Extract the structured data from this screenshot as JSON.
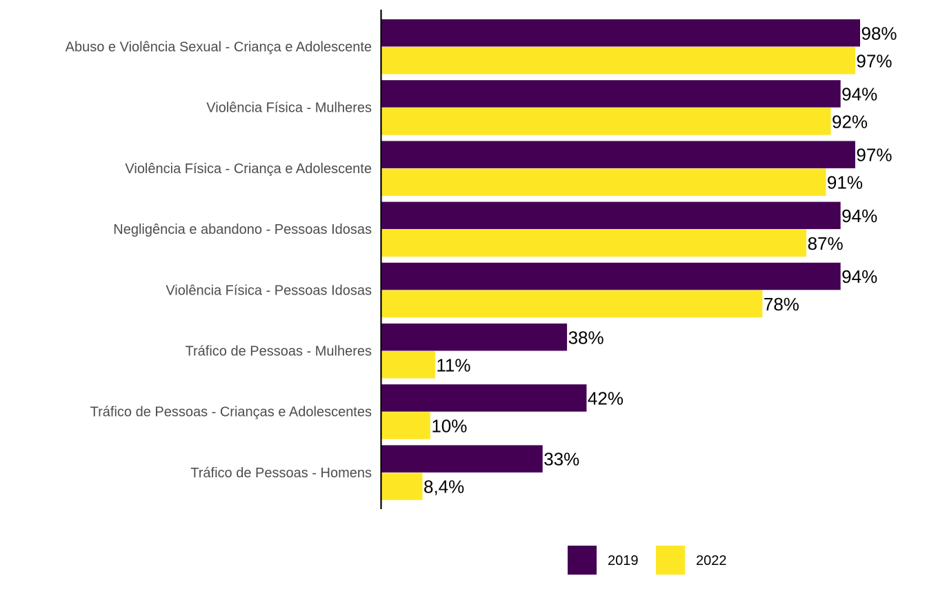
{
  "chart_data": {
    "type": "bar",
    "orientation": "horizontal",
    "categories": [
      "Abuso e Violência Sexual - Criança e Adolescente",
      "Violência Física - Mulheres",
      "Violência Física - Criança e Adolescente",
      "Negligência e abandono - Pessoas Idosas",
      "Violência Física - Pessoas Idosas",
      "Tráfico de Pessoas - Mulheres",
      "Tráfico de Pessoas - Crianças e Adolescentes",
      "Tráfico de Pessoas - Homens"
    ],
    "series": [
      {
        "name": "2019",
        "color": "#440154",
        "values": [
          98,
          94,
          97,
          94,
          94,
          38,
          42,
          33
        ],
        "labels": [
          "98%",
          "94%",
          "97%",
          "94%",
          "94%",
          "38%",
          "42%",
          "33%"
        ]
      },
      {
        "name": "2022",
        "color": "#fde725",
        "values": [
          97,
          92,
          91,
          87,
          78,
          11,
          10,
          8.4
        ],
        "labels": [
          "97%",
          "92%",
          "91%",
          "87%",
          "78%",
          "11%",
          "10%",
          "8,4%"
        ]
      }
    ],
    "xlim": [
      0,
      100
    ],
    "grid": false,
    "legend_position": "bottom",
    "title": "",
    "xlabel": "",
    "ylabel": ""
  }
}
